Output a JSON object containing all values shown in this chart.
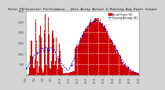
{
  "title": "Solar PV/Inverter Performance - West Array Actual & Running Avg Power Output",
  "bg_color": "#d4d4d4",
  "plot_bg": "#ffffff",
  "bar_color": "#cc0000",
  "avg_color": "#0000ff",
  "grid_color": "#aaaaaa",
  "ylim": [
    0,
    3000
  ],
  "ytick_vals": [
    500,
    1000,
    1500,
    2000,
    2500,
    3000
  ],
  "legend_actual": "Actual Power (W)",
  "legend_avg": "Running Average (W)",
  "n_points": 200,
  "title_fontsize": 3.0,
  "tick_fontsize": 2.2,
  "legend_fontsize": 2.2
}
